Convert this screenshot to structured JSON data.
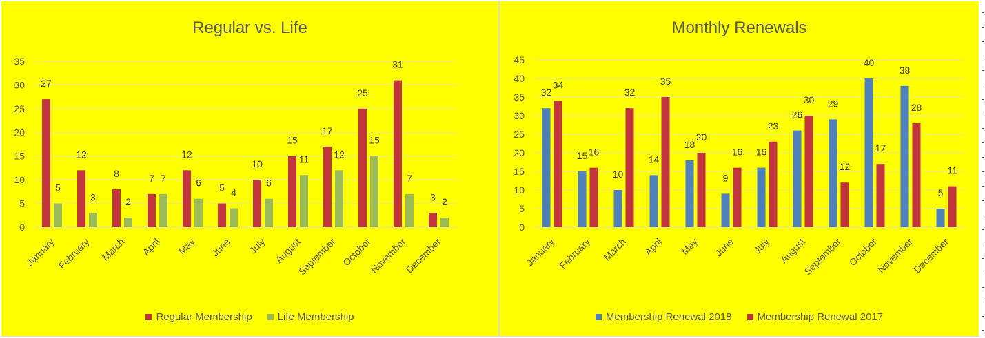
{
  "chart_data": [
    {
      "type": "bar",
      "title": "Regular vs. Life",
      "categories": [
        "January",
        "February",
        "March",
        "April",
        "May",
        "June",
        "July",
        "August",
        "September",
        "October",
        "November",
        "December"
      ],
      "series": [
        {
          "name": "Regular Membership",
          "color": "#c0363c",
          "values": [
            27,
            12,
            8,
            7,
            12,
            5,
            10,
            15,
            17,
            25,
            31,
            3
          ]
        },
        {
          "name": "Life Membership",
          "color": "#9bbb59",
          "values": [
            5,
            3,
            2,
            7,
            6,
            4,
            6,
            11,
            12,
            15,
            7,
            2
          ]
        }
      ],
      "ylim": [
        0,
        35
      ],
      "yticks": [
        0,
        5,
        10,
        15,
        20,
        25,
        30,
        35
      ],
      "grid": true,
      "legend": "bottom",
      "xlabel": "",
      "ylabel": ""
    },
    {
      "type": "bar",
      "title": "Monthly Renewals",
      "categories": [
        "January",
        "February",
        "March",
        "April",
        "May",
        "June",
        "July",
        "August",
        "September",
        "October",
        "November",
        "December"
      ],
      "series": [
        {
          "name": "Membership Renewal 2018",
          "color": "#4f81bd",
          "values": [
            32,
            15,
            10,
            14,
            18,
            9,
            16,
            26,
            29,
            40,
            38,
            5
          ]
        },
        {
          "name": "Membership Renewal 2017",
          "color": "#c0363c",
          "values": [
            34,
            16,
            32,
            35,
            20,
            16,
            23,
            30,
            12,
            17,
            28,
            11
          ]
        }
      ],
      "ylim": [
        0,
        45
      ],
      "yticks": [
        0,
        5,
        10,
        15,
        20,
        25,
        30,
        35,
        40,
        45
      ],
      "grid": true,
      "legend": "bottom",
      "xlabel": "",
      "ylabel": ""
    }
  ]
}
